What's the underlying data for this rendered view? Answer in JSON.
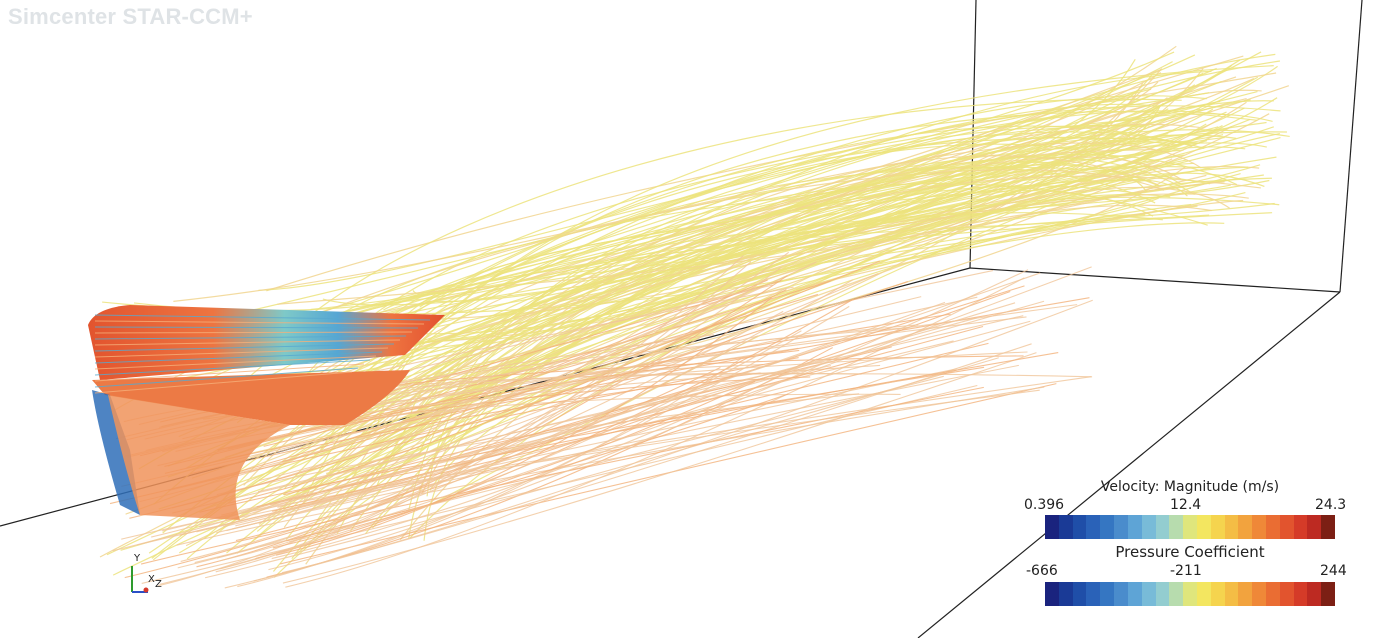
{
  "app": {
    "title": "Simcenter STAR-CCM+"
  },
  "scene": {
    "triad": {
      "y": "Y",
      "x": "X",
      "z": "Z"
    },
    "streamline_colors": [
      "#1f2f8c",
      "#2f6fb8",
      "#55a6d4",
      "#7ec9c8",
      "#e8e27a",
      "#f0c85a",
      "#f2a24a",
      "#ee7440",
      "#e2502f"
    ]
  },
  "legends": [
    {
      "title": "Velocity: Magnitude (m/s)",
      "min": "0.396",
      "mid": "12.4",
      "max": "24.3",
      "colors": [
        "#1a237e",
        "#1a3a96",
        "#1f4ea8",
        "#2a62b8",
        "#3576c2",
        "#4a8ccc",
        "#5ea4d6",
        "#78bbd8",
        "#93cdd0",
        "#b7dcae",
        "#dfe67c",
        "#f3e660",
        "#f5d44e",
        "#f4bd45",
        "#f2a33e",
        "#ef8838",
        "#ea6d33",
        "#e2542e",
        "#d53b28",
        "#bd2a22",
        "#7c1f14"
      ]
    },
    {
      "title": "Pressure Coefficient",
      "min": "-666",
      "mid": "-211",
      "max": "244",
      "colors": [
        "#1a237e",
        "#1a3a96",
        "#1f4ea8",
        "#2a62b8",
        "#3576c2",
        "#4a8ccc",
        "#5ea4d6",
        "#78bbd8",
        "#93cdd0",
        "#b7dcae",
        "#dfe67c",
        "#f3e660",
        "#f5d44e",
        "#f4bd45",
        "#f2a33e",
        "#ef8838",
        "#ea6d33",
        "#e2542e",
        "#d53b28",
        "#bd2a22",
        "#7c1f14"
      ]
    }
  ]
}
